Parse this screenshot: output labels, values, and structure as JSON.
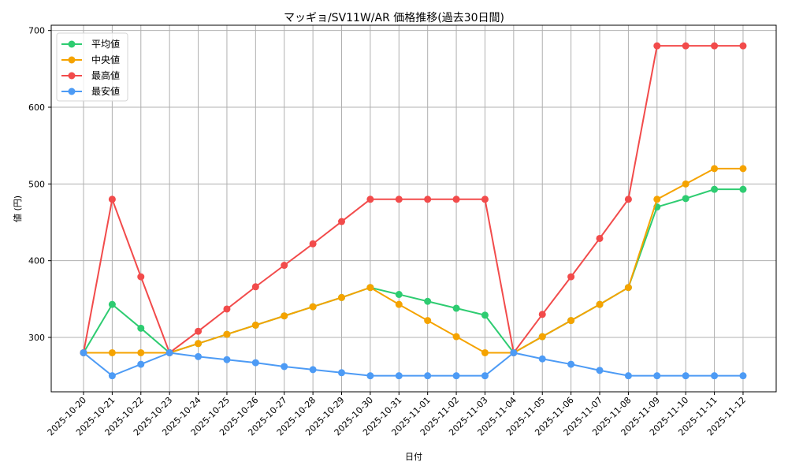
{
  "chart_data": {
    "type": "line",
    "title": "マッギョ/SV11W/AR 価格推移(過去30日間)",
    "xlabel": "日付",
    "ylabel": "値 (円)",
    "ylim": [
      229,
      701
    ],
    "yticks": [
      300,
      400,
      500,
      600,
      700
    ],
    "grid": true,
    "legend_position": "upper left",
    "categories": [
      "2025-10-20",
      "2025-10-21",
      "2025-10-22",
      "2025-10-23",
      "2025-10-24",
      "2025-10-25",
      "2025-10-26",
      "2025-10-27",
      "2025-10-28",
      "2025-10-29",
      "2025-10-30",
      "2025-10-31",
      "2025-11-01",
      "2025-11-02",
      "2025-11-03",
      "2025-11-04",
      "2025-11-05",
      "2025-11-06",
      "2025-11-07",
      "2025-11-08",
      "2025-11-09",
      "2025-11-10",
      "2025-11-11",
      "2025-11-12"
    ],
    "series": [
      {
        "name": "平均値",
        "color": "#2ecc71",
        "values": [
          280,
          343,
          312,
          280,
          292,
          304,
          316,
          328,
          340,
          352,
          365,
          356,
          347,
          338,
          329,
          280,
          301,
          322,
          343,
          365,
          470,
          481,
          493,
          493
        ]
      },
      {
        "name": "中央値",
        "color": "#f5a300",
        "values": [
          280,
          280,
          280,
          280,
          292,
          304,
          316,
          328,
          340,
          352,
          365,
          343,
          322,
          301,
          280,
          280,
          301,
          322,
          343,
          365,
          480,
          500,
          520,
          520
        ]
      },
      {
        "name": "最高値",
        "color": "#f24b4b",
        "values": [
          280,
          480,
          379,
          280,
          308,
          337,
          366,
          394,
          422,
          451,
          480,
          480,
          480,
          480,
          480,
          280,
          330,
          379,
          429,
          480,
          680,
          680,
          680,
          680
        ]
      },
      {
        "name": "最安値",
        "color": "#4d9bf5",
        "values": [
          280,
          250,
          265,
          280,
          275,
          271,
          267,
          262,
          258,
          254,
          250,
          250,
          250,
          250,
          250,
          280,
          272,
          265,
          257,
          250,
          250,
          250,
          250,
          250
        ]
      }
    ]
  }
}
